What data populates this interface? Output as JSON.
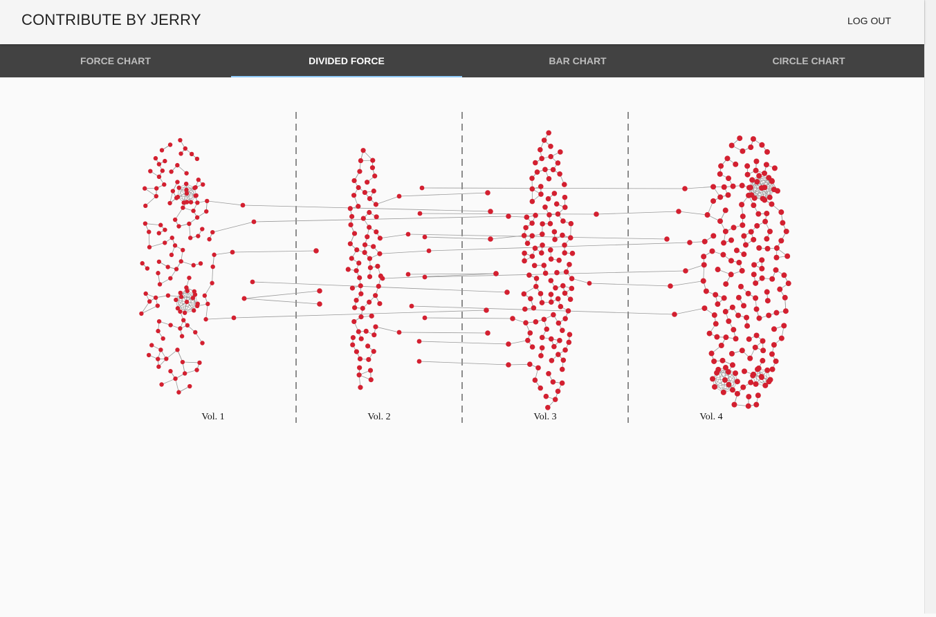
{
  "app": {
    "title": "CONTRIBUTE BY JERRY",
    "logout_label": "LOG OUT"
  },
  "tabs": [
    {
      "label": "FORCE CHART",
      "active": false
    },
    {
      "label": "DIVIDED FORCE",
      "active": true
    },
    {
      "label": "BAR CHART",
      "active": false
    },
    {
      "label": "CIRCLE CHART",
      "active": false
    }
  ],
  "colors": {
    "node": "#d32030",
    "link": "#999999",
    "divider": "#666666",
    "tab_indicator": "#90caf9"
  },
  "chart_data": {
    "type": "force-directed network, divided into columns",
    "columns": [
      "Vol. 1",
      "Vol. 2",
      "Vol. 3",
      "Vol. 4"
    ]
  }
}
